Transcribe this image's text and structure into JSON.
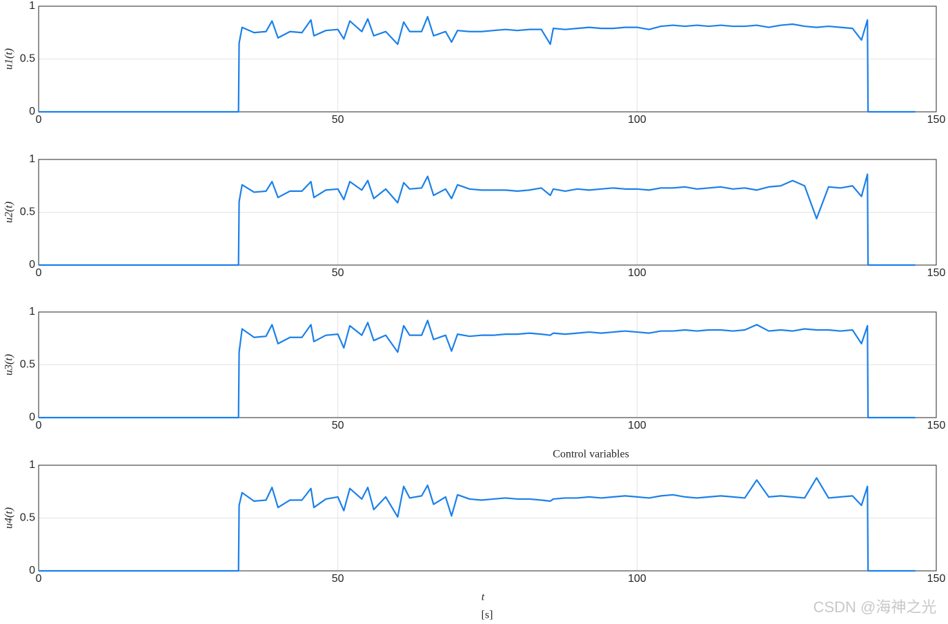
{
  "chart_data": [
    {
      "type": "line",
      "ylabel": "u1(t)",
      "color": "#1a80ea",
      "xlim": [
        0,
        150
      ],
      "ylim": [
        0,
        1
      ],
      "xticks": [
        0,
        50,
        100,
        150
      ],
      "yticks": [
        0,
        0.5,
        1
      ],
      "grid": true,
      "x": [
        0,
        33.4,
        33.5,
        34,
        36,
        38,
        39,
        40,
        42,
        44,
        45.5,
        46,
        48,
        50,
        51,
        52,
        54,
        55,
        56,
        58,
        60,
        61,
        62,
        64,
        65,
        66,
        68,
        69,
        70,
        72,
        74,
        76,
        78,
        80,
        82,
        84,
        85.5,
        86,
        88,
        90,
        92,
        94,
        96,
        98,
        100,
        102,
        104,
        106,
        108,
        110,
        112,
        114,
        116,
        118,
        120,
        122,
        124,
        126,
        128,
        130,
        132,
        134,
        136,
        137.5,
        138.5,
        138.6,
        138.7,
        146.5
      ],
      "values": [
        0,
        0,
        0.65,
        0.8,
        0.75,
        0.76,
        0.86,
        0.7,
        0.76,
        0.75,
        0.87,
        0.72,
        0.77,
        0.78,
        0.69,
        0.86,
        0.76,
        0.88,
        0.72,
        0.76,
        0.64,
        0.85,
        0.76,
        0.76,
        0.9,
        0.72,
        0.76,
        0.66,
        0.77,
        0.76,
        0.76,
        0.77,
        0.78,
        0.77,
        0.78,
        0.78,
        0.64,
        0.79,
        0.78,
        0.79,
        0.8,
        0.79,
        0.79,
        0.8,
        0.8,
        0.78,
        0.81,
        0.82,
        0.81,
        0.82,
        0.81,
        0.82,
        0.81,
        0.81,
        0.82,
        0.8,
        0.82,
        0.83,
        0.81,
        0.8,
        0.81,
        0.8,
        0.79,
        0.68,
        0.87,
        0,
        0,
        0
      ]
    },
    {
      "type": "line",
      "ylabel": "u2(t)",
      "color": "#1a80ea",
      "xlim": [
        0,
        150
      ],
      "ylim": [
        0,
        1
      ],
      "xticks": [
        0,
        50,
        100,
        150
      ],
      "yticks": [
        0,
        0.5,
        1
      ],
      "grid": true,
      "x": [
        0,
        33.4,
        33.5,
        34,
        36,
        38,
        39,
        40,
        42,
        44,
        45.5,
        46,
        48,
        50,
        51,
        52,
        54,
        55,
        56,
        58,
        60,
        61,
        62,
        64,
        65,
        66,
        68,
        69,
        70,
        72,
        74,
        76,
        78,
        80,
        82,
        84,
        85.5,
        86,
        88,
        90,
        92,
        94,
        96,
        98,
        100,
        102,
        104,
        106,
        108,
        110,
        112,
        114,
        116,
        118,
        120,
        122,
        124,
        126,
        128,
        130,
        132,
        134,
        136,
        137.5,
        138.5,
        138.6,
        138.7,
        146.5
      ],
      "values": [
        0,
        0,
        0.6,
        0.76,
        0.69,
        0.7,
        0.79,
        0.64,
        0.7,
        0.7,
        0.79,
        0.64,
        0.71,
        0.72,
        0.62,
        0.79,
        0.71,
        0.8,
        0.63,
        0.72,
        0.59,
        0.78,
        0.72,
        0.73,
        0.84,
        0.66,
        0.72,
        0.63,
        0.76,
        0.72,
        0.71,
        0.71,
        0.71,
        0.7,
        0.71,
        0.73,
        0.66,
        0.72,
        0.7,
        0.72,
        0.71,
        0.72,
        0.73,
        0.72,
        0.72,
        0.71,
        0.73,
        0.73,
        0.74,
        0.72,
        0.73,
        0.74,
        0.72,
        0.73,
        0.71,
        0.74,
        0.75,
        0.8,
        0.75,
        0.44,
        0.74,
        0.73,
        0.75,
        0.65,
        0.86,
        0,
        0,
        0
      ]
    },
    {
      "type": "line",
      "ylabel": "u3(t)",
      "color": "#1a80ea",
      "xlim": [
        0,
        150
      ],
      "ylim": [
        0,
        1
      ],
      "xticks": [
        0,
        50,
        100,
        150
      ],
      "yticks": [
        0,
        0.5,
        1
      ],
      "grid": true,
      "x": [
        0,
        33.4,
        33.5,
        34,
        36,
        38,
        39,
        40,
        42,
        44,
        45.5,
        46,
        48,
        50,
        51,
        52,
        54,
        55,
        56,
        58,
        60,
        61,
        62,
        64,
        65,
        66,
        68,
        69,
        70,
        72,
        74,
        76,
        78,
        80,
        82,
        84,
        85.5,
        86,
        88,
        90,
        92,
        94,
        96,
        98,
        100,
        102,
        104,
        106,
        108,
        110,
        112,
        114,
        116,
        118,
        120,
        122,
        124,
        126,
        128,
        130,
        132,
        134,
        136,
        137.5,
        138.5,
        138.6,
        138.7,
        146.5
      ],
      "values": [
        0,
        0,
        0.62,
        0.84,
        0.76,
        0.77,
        0.88,
        0.7,
        0.76,
        0.76,
        0.88,
        0.72,
        0.78,
        0.79,
        0.66,
        0.87,
        0.78,
        0.9,
        0.73,
        0.78,
        0.62,
        0.87,
        0.78,
        0.78,
        0.92,
        0.74,
        0.78,
        0.63,
        0.79,
        0.77,
        0.78,
        0.78,
        0.79,
        0.79,
        0.8,
        0.79,
        0.78,
        0.8,
        0.79,
        0.8,
        0.81,
        0.8,
        0.81,
        0.82,
        0.81,
        0.8,
        0.82,
        0.82,
        0.83,
        0.82,
        0.83,
        0.83,
        0.82,
        0.83,
        0.88,
        0.82,
        0.83,
        0.82,
        0.84,
        0.83,
        0.83,
        0.82,
        0.83,
        0.7,
        0.87,
        0,
        0,
        0
      ]
    },
    {
      "type": "line",
      "title": "Control variables",
      "ylabel": "u4(t)",
      "xlabel": "t",
      "xunit": "[s]",
      "color": "#1a80ea",
      "xlim": [
        0,
        150
      ],
      "ylim": [
        0,
        1
      ],
      "xticks": [
        0,
        50,
        100,
        150
      ],
      "yticks": [
        0,
        0.5,
        1
      ],
      "grid": true,
      "x": [
        0,
        33.4,
        33.5,
        34,
        36,
        38,
        39,
        40,
        42,
        44,
        45.5,
        46,
        48,
        50,
        51,
        52,
        54,
        55,
        56,
        58,
        60,
        61,
        62,
        64,
        65,
        66,
        68,
        69,
        70,
        72,
        74,
        76,
        78,
        80,
        82,
        84,
        85.5,
        86,
        88,
        90,
        92,
        94,
        96,
        98,
        100,
        102,
        104,
        106,
        108,
        110,
        112,
        114,
        116,
        118,
        120,
        122,
        124,
        126,
        128,
        130,
        132,
        134,
        136,
        137.5,
        138.5,
        138.6,
        138.7,
        146.5
      ],
      "values": [
        0,
        0,
        0.62,
        0.74,
        0.66,
        0.67,
        0.79,
        0.6,
        0.67,
        0.67,
        0.78,
        0.6,
        0.68,
        0.7,
        0.57,
        0.78,
        0.68,
        0.79,
        0.58,
        0.7,
        0.51,
        0.8,
        0.69,
        0.71,
        0.81,
        0.63,
        0.7,
        0.52,
        0.72,
        0.68,
        0.67,
        0.68,
        0.69,
        0.68,
        0.68,
        0.67,
        0.66,
        0.68,
        0.69,
        0.69,
        0.7,
        0.69,
        0.7,
        0.71,
        0.7,
        0.69,
        0.71,
        0.72,
        0.7,
        0.69,
        0.7,
        0.71,
        0.7,
        0.69,
        0.86,
        0.7,
        0.71,
        0.7,
        0.69,
        0.88,
        0.69,
        0.7,
        0.71,
        0.62,
        0.8,
        0,
        0,
        0
      ]
    }
  ],
  "watermark": "CSDN @海神之光"
}
